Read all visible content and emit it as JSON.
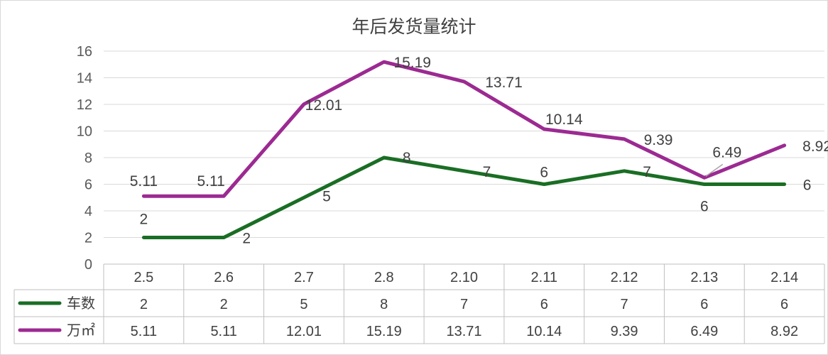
{
  "chart_data": {
    "type": "line",
    "title": "年后发货量统计",
    "categories": [
      "2.5",
      "2.6",
      "2.7",
      "2.8",
      "2.10",
      "2.11",
      "2.12",
      "2.13",
      "2.14"
    ],
    "series": [
      {
        "name": "车数",
        "color": "#1a6e24",
        "values": [
          2,
          2,
          5,
          8,
          7,
          6,
          7,
          6,
          6
        ],
        "labels": [
          "2",
          "2",
          "5",
          "8",
          "7",
          "6",
          "7",
          "6",
          "6"
        ]
      },
      {
        "name": "万㎡",
        "color": "#9c2a92",
        "values": [
          5.11,
          5.11,
          12.01,
          15.19,
          13.71,
          10.14,
          9.39,
          6.49,
          8.92
        ],
        "labels": [
          "5.11",
          "5.11",
          "12.01",
          "15.19",
          "13.71",
          "10.14",
          "9.39",
          "6.49",
          "8.92"
        ]
      }
    ],
    "ylim": [
      0,
      16
    ],
    "yticks": [
      "0",
      "2",
      "4",
      "6",
      "8",
      "10",
      "12",
      "14",
      "16"
    ],
    "grid": true,
    "legend": "data-table",
    "xlabel": "",
    "ylabel": ""
  }
}
